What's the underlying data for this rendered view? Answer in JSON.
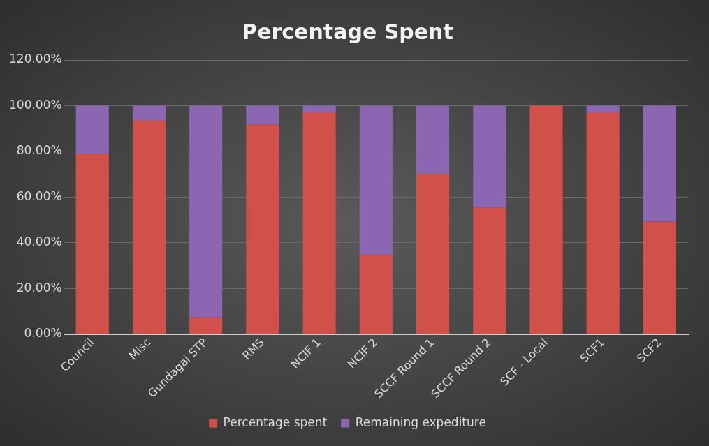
{
  "chart_data": {
    "type": "bar",
    "title": "Percentage Spent",
    "stacked": true,
    "categories": [
      "Council",
      "Misc",
      "Gundagai STP",
      "RMS",
      "NCIF 1",
      "NCIF 2",
      "SCCF Round 1",
      "SCCF Round 2",
      "SCF - Local",
      "SCF1",
      "SCF2"
    ],
    "series": [
      {
        "name": "Percentage spent",
        "color": "#d2504a",
        "values": [
          79,
          93.5,
          7.3,
          91.7,
          97.1,
          34.7,
          70.1,
          55.4,
          100,
          97.1,
          49.3
        ]
      },
      {
        "name": "Remaining expediture",
        "color": "#8a67b0",
        "values": [
          21,
          6.5,
          92.7,
          8.3,
          2.9,
          65.3,
          29.9,
          44.6,
          0,
          2.9,
          50.7
        ]
      }
    ],
    "ylim": [
      0,
      120
    ],
    "yticks": [
      {
        "value": 0,
        "label": "0.00%"
      },
      {
        "value": 20,
        "label": "20.00%"
      },
      {
        "value": 40,
        "label": "40.00%"
      },
      {
        "value": 60,
        "label": "60.00%"
      },
      {
        "value": 80,
        "label": "80.00%"
      },
      {
        "value": 100,
        "label": "100.00%"
      },
      {
        "value": 120,
        "label": "120.00%"
      }
    ],
    "grid": "y",
    "legend": "bottom"
  }
}
